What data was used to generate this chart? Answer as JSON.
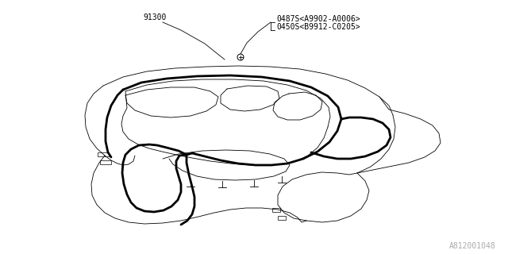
{
  "bg_color": "#ffffff",
  "line_color": "#000000",
  "label_91300": "91300",
  "label_part1": "0487S<A9902-A0006>",
  "label_part2": "0450S<B9912-C0205>",
  "watermark": "A812001048",
  "font_family": "monospace",
  "label_fontsize": 7.0,
  "watermark_fontsize": 7.0,
  "lw_thin": 0.6,
  "lw_thick": 2.0
}
